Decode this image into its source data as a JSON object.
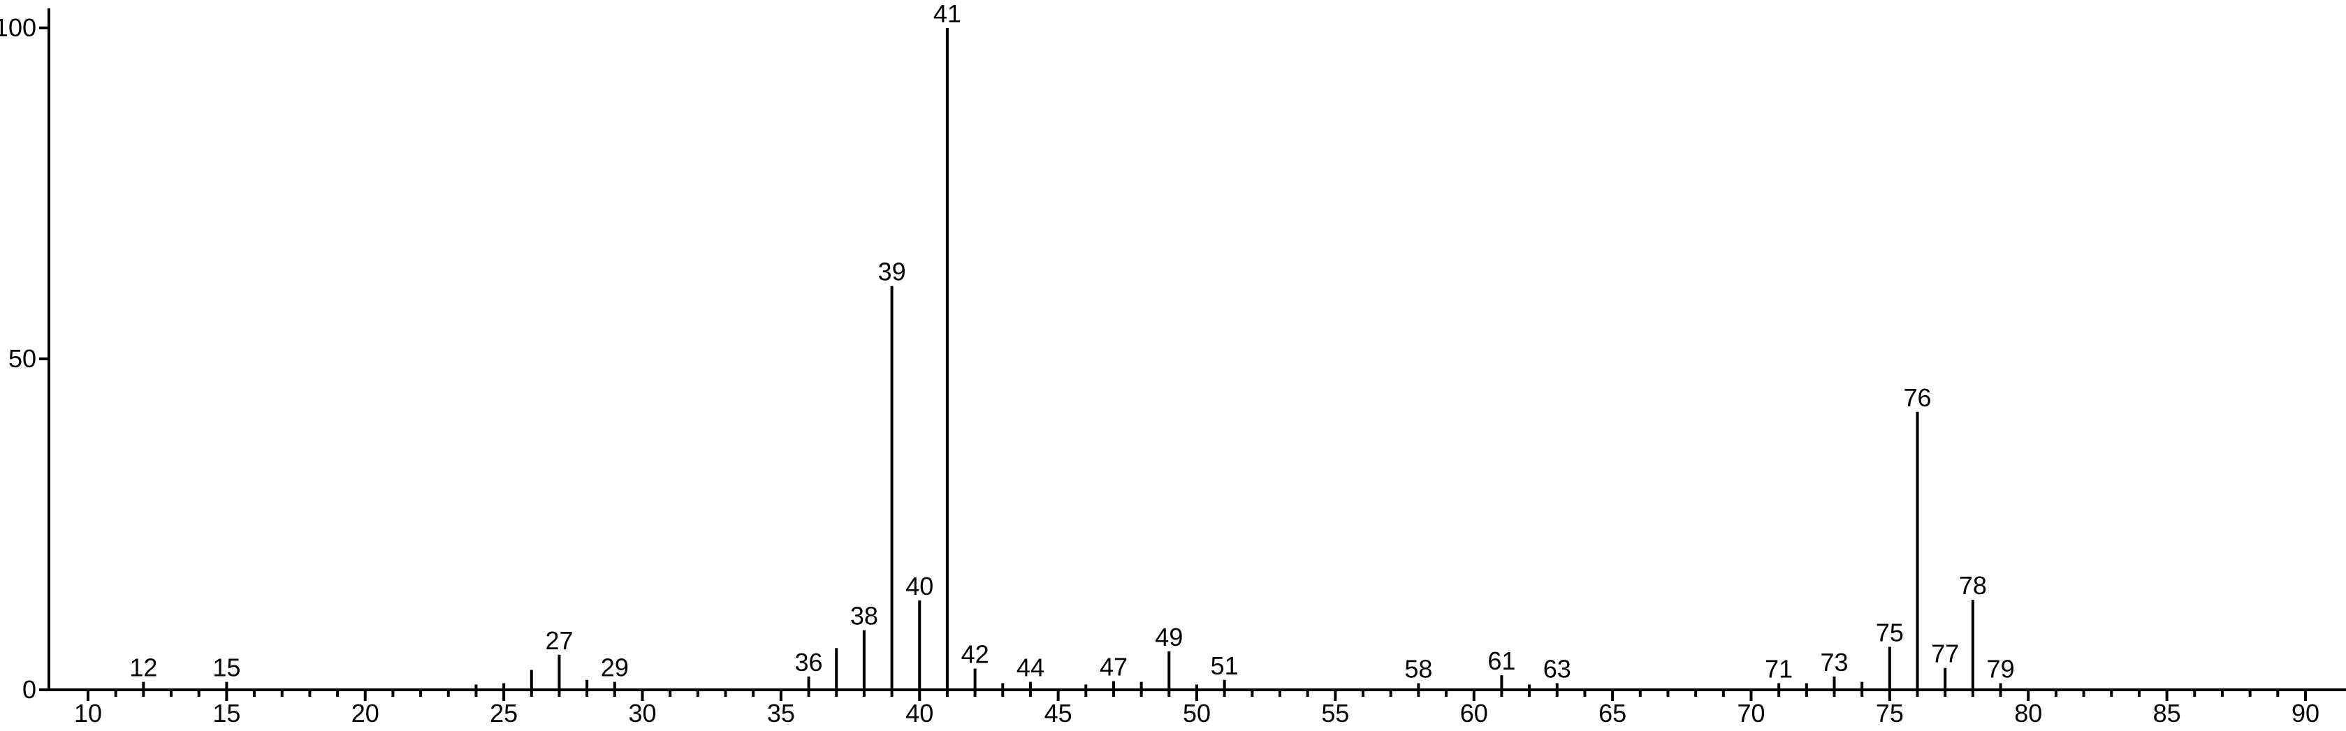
{
  "chart_data": {
    "type": "bar",
    "subtype": "mass-spectrum",
    "title": "",
    "xlabel": "",
    "ylabel": "",
    "foreground_color": "#000000",
    "background_color": "#ffffff",
    "x_axis": {
      "min": 10,
      "max": 90,
      "major_tick_step": 5,
      "minor_tick_step": 1,
      "major_ticks": [
        10,
        15,
        20,
        25,
        30,
        35,
        40,
        45,
        50,
        55,
        60,
        65,
        70,
        75,
        80,
        85,
        90
      ]
    },
    "y_axis": {
      "min": 0,
      "max": 100,
      "ticks": [
        0,
        50,
        100
      ]
    },
    "peaks": [
      {
        "mz": 12,
        "intensity": 1.2,
        "label": "12"
      },
      {
        "mz": 15,
        "intensity": 1.2,
        "label": "15"
      },
      {
        "mz": 24,
        "intensity": 0.8,
        "label": ""
      },
      {
        "mz": 25,
        "intensity": 1.0,
        "label": ""
      },
      {
        "mz": 26,
        "intensity": 3.0,
        "label": ""
      },
      {
        "mz": 27,
        "intensity": 5.3,
        "label": "27"
      },
      {
        "mz": 28,
        "intensity": 1.5,
        "label": ""
      },
      {
        "mz": 29,
        "intensity": 1.2,
        "label": "29"
      },
      {
        "mz": 36,
        "intensity": 2.0,
        "label": "36"
      },
      {
        "mz": 37,
        "intensity": 6.3,
        "label": ""
      },
      {
        "mz": 38,
        "intensity": 9.0,
        "label": "38"
      },
      {
        "mz": 39,
        "intensity": 61.0,
        "label": "39"
      },
      {
        "mz": 40,
        "intensity": 13.5,
        "label": "40"
      },
      {
        "mz": 41,
        "intensity": 100.0,
        "label": "41"
      },
      {
        "mz": 42,
        "intensity": 3.2,
        "label": "42"
      },
      {
        "mz": 43,
        "intensity": 1.0,
        "label": ""
      },
      {
        "mz": 44,
        "intensity": 1.2,
        "label": "44"
      },
      {
        "mz": 46,
        "intensity": 0.8,
        "label": ""
      },
      {
        "mz": 47,
        "intensity": 1.3,
        "label": "47"
      },
      {
        "mz": 48,
        "intensity": 1.2,
        "label": ""
      },
      {
        "mz": 49,
        "intensity": 5.8,
        "label": "49"
      },
      {
        "mz": 50,
        "intensity": 0.8,
        "label": ""
      },
      {
        "mz": 51,
        "intensity": 1.5,
        "label": "51"
      },
      {
        "mz": 58,
        "intensity": 1.0,
        "label": "58"
      },
      {
        "mz": 61,
        "intensity": 2.2,
        "label": "61"
      },
      {
        "mz": 62,
        "intensity": 0.8,
        "label": ""
      },
      {
        "mz": 63,
        "intensity": 1.0,
        "label": "63"
      },
      {
        "mz": 71,
        "intensity": 1.0,
        "label": "71"
      },
      {
        "mz": 72,
        "intensity": 1.0,
        "label": ""
      },
      {
        "mz": 73,
        "intensity": 2.0,
        "label": "73"
      },
      {
        "mz": 74,
        "intensity": 1.2,
        "label": ""
      },
      {
        "mz": 75,
        "intensity": 6.5,
        "label": "75"
      },
      {
        "mz": 76,
        "intensity": 42.0,
        "label": "76"
      },
      {
        "mz": 77,
        "intensity": 3.3,
        "label": "77"
      },
      {
        "mz": 78,
        "intensity": 13.6,
        "label": "78"
      },
      {
        "mz": 79,
        "intensity": 1.0,
        "label": "79"
      }
    ]
  }
}
